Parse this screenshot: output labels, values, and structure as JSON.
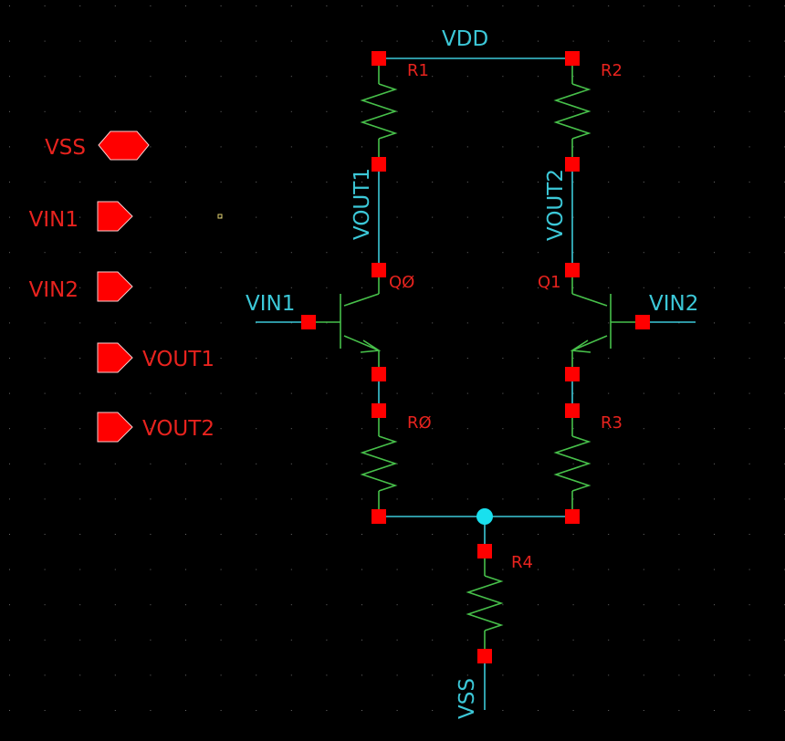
{
  "colors": {
    "background": "#000000",
    "wire": "#3cc8d8",
    "device": "#47c04a",
    "pin": "#ff0000",
    "label": "#e8231e",
    "junction": "#19e0ee",
    "grid_dot": "#6a6a6a"
  },
  "pins": {
    "vss": "VSS",
    "vin1": "VIN1",
    "vin2": "VIN2",
    "vout1": "VOUT1",
    "vout2": "VOUT2"
  },
  "nets": {
    "vdd": "VDD",
    "vout1": "VOUT1",
    "vout2": "VOUT2",
    "vin1": "VIN1",
    "vin2": "VIN2",
    "vss": "VSS"
  },
  "devices": {
    "r0": "RØ",
    "r1": "R1",
    "r2": "R2",
    "r3": "R3",
    "r4": "R4",
    "q0": "QØ",
    "q1": "Q1"
  }
}
